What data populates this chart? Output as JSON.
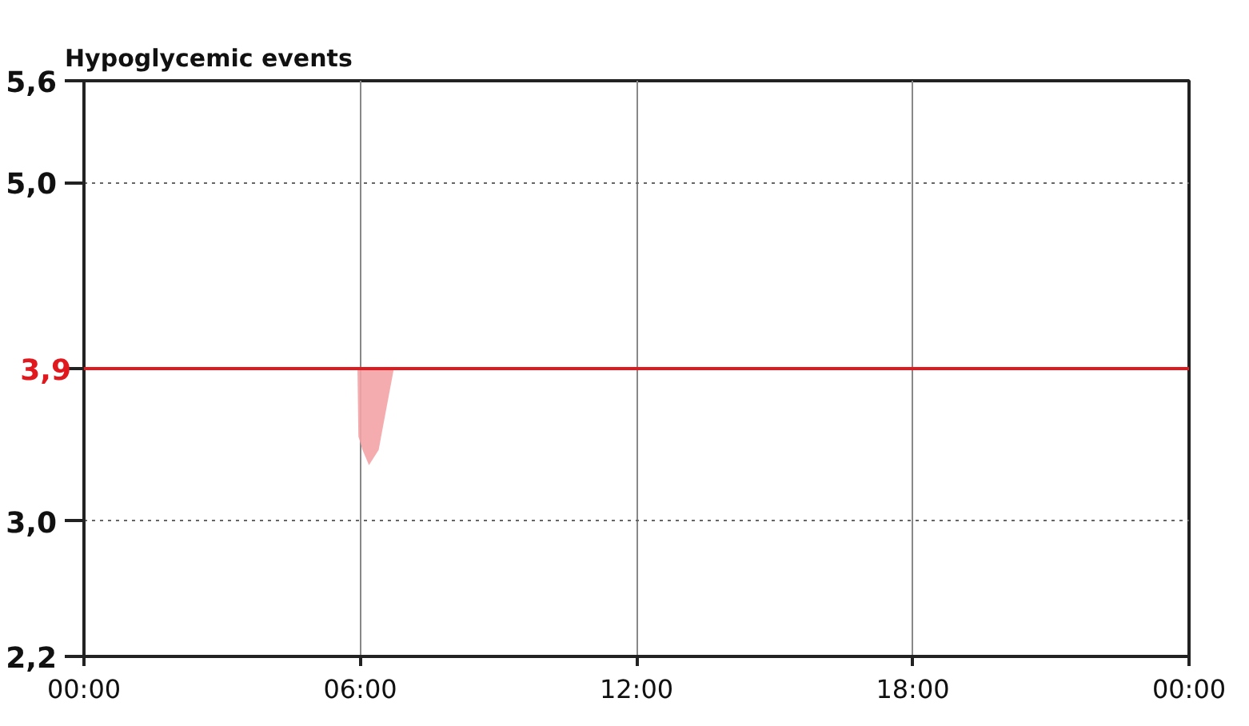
{
  "chart_data": {
    "type": "area",
    "title": "Hypoglycemic events",
    "xlim": [
      0,
      24
    ],
    "xticks": [
      {
        "value": 0,
        "label": "00:00"
      },
      {
        "value": 6,
        "label": "06:00"
      },
      {
        "value": 12,
        "label": "12:00"
      },
      {
        "value": 18,
        "label": "18:00"
      },
      {
        "value": 24,
        "label": "00:00"
      }
    ],
    "ylim": [
      2.2,
      5.6
    ],
    "yticks": [
      {
        "value": 2.2,
        "label": "2,2"
      },
      {
        "value": 3.0,
        "label": "3,0"
      },
      {
        "value": 3.9,
        "label": null
      },
      {
        "value": 5.0,
        "label": "5,0"
      },
      {
        "value": 5.6,
        "label": "5,6"
      }
    ],
    "grid": true,
    "series": [
      {
        "color": "#f4a3a6",
        "x": [
          5.94,
          5.96,
          6.05,
          6.19,
          6.4,
          6.73
        ],
        "values": [
          3.9,
          3.5,
          3.42,
          3.33,
          3.42,
          3.9
        ]
      }
    ],
    "ref_lines": [
      {
        "axis": "y",
        "value": 3.9,
        "label": "3,9",
        "color": "#e0191e",
        "line_style": "solid"
      }
    ]
  }
}
